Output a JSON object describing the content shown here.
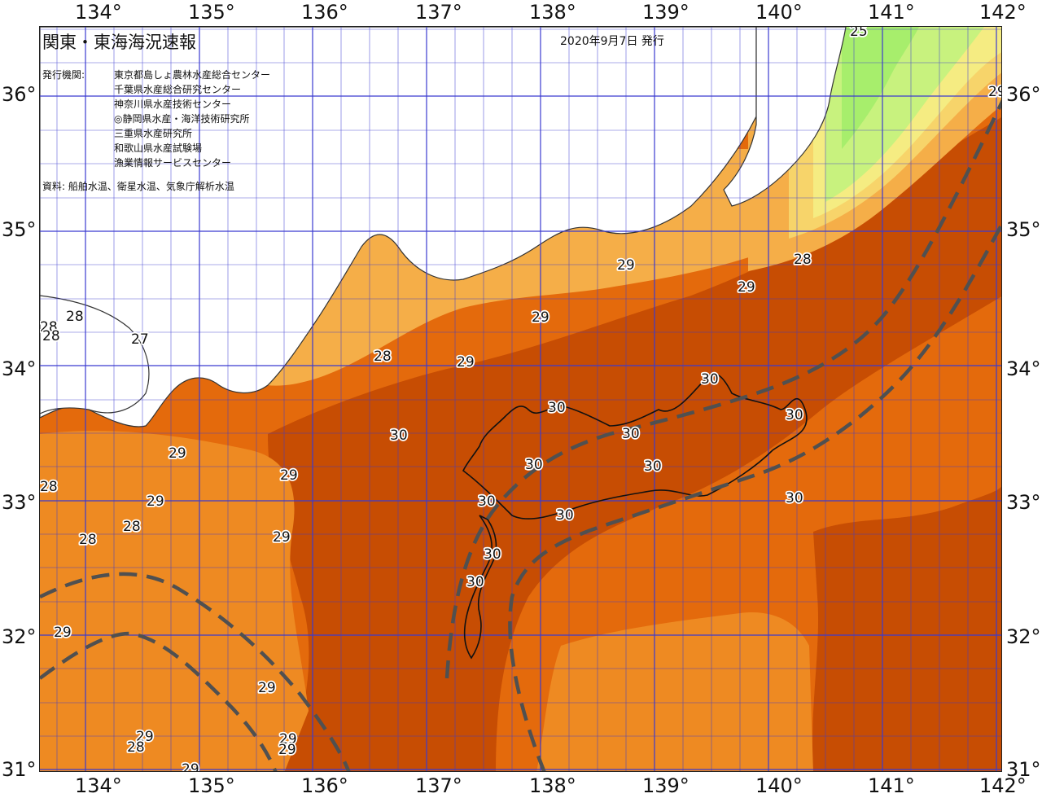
{
  "title": "関東・東海海況速報",
  "issue_date": "2020年9月7日 発行",
  "publishers_label": "発行機関:",
  "publishers": [
    "東京都島しょ農林水産総合センター",
    "千葉県水産総合研究センター",
    "神奈川県水産技術センター",
    "◎静岡県水産・海洋技術研究所",
    "三重県水産研究所",
    "和歌山県水産試験場",
    "漁業情報サービスセンター"
  ],
  "sources": "資料: 船舶水温、衛星水温、気象庁解析水温",
  "longitude_labels": [
    "134°",
    "135°",
    "136°",
    "137°",
    "138°",
    "139°",
    "140°",
    "141°",
    "142°"
  ],
  "latitude_labels": [
    "36°",
    "35°",
    "34°",
    "33°",
    "32°",
    "31°"
  ],
  "isotherm_labels": [
    "25",
    "29",
    "28",
    "29",
    "28",
    "27",
    "29",
    "29",
    "28",
    "28",
    "28",
    "29",
    "30",
    "30",
    "30",
    "30",
    "30",
    "30",
    "30",
    "30",
    "30",
    "30",
    "30",
    "30",
    "29",
    "29",
    "28",
    "29",
    "28",
    "28",
    "29",
    "29",
    "29",
    "29",
    "29",
    "28",
    "29",
    "29"
  ],
  "colors": {
    "land": "#ffffff",
    "coastline": "#333333",
    "grid": "#3b3bd0",
    "sst_24": "#a7ee6c",
    "sst_25": "#c8f27e",
    "sst_26": "#f5ec82",
    "sst_27": "#f7d46a",
    "sst_28": "#f5ae48",
    "sst_29": "#ee8a22",
    "sst_29_5": "#e46a0c",
    "sst_30": "#c74d03",
    "kuroshio_axis": "#505050"
  }
}
